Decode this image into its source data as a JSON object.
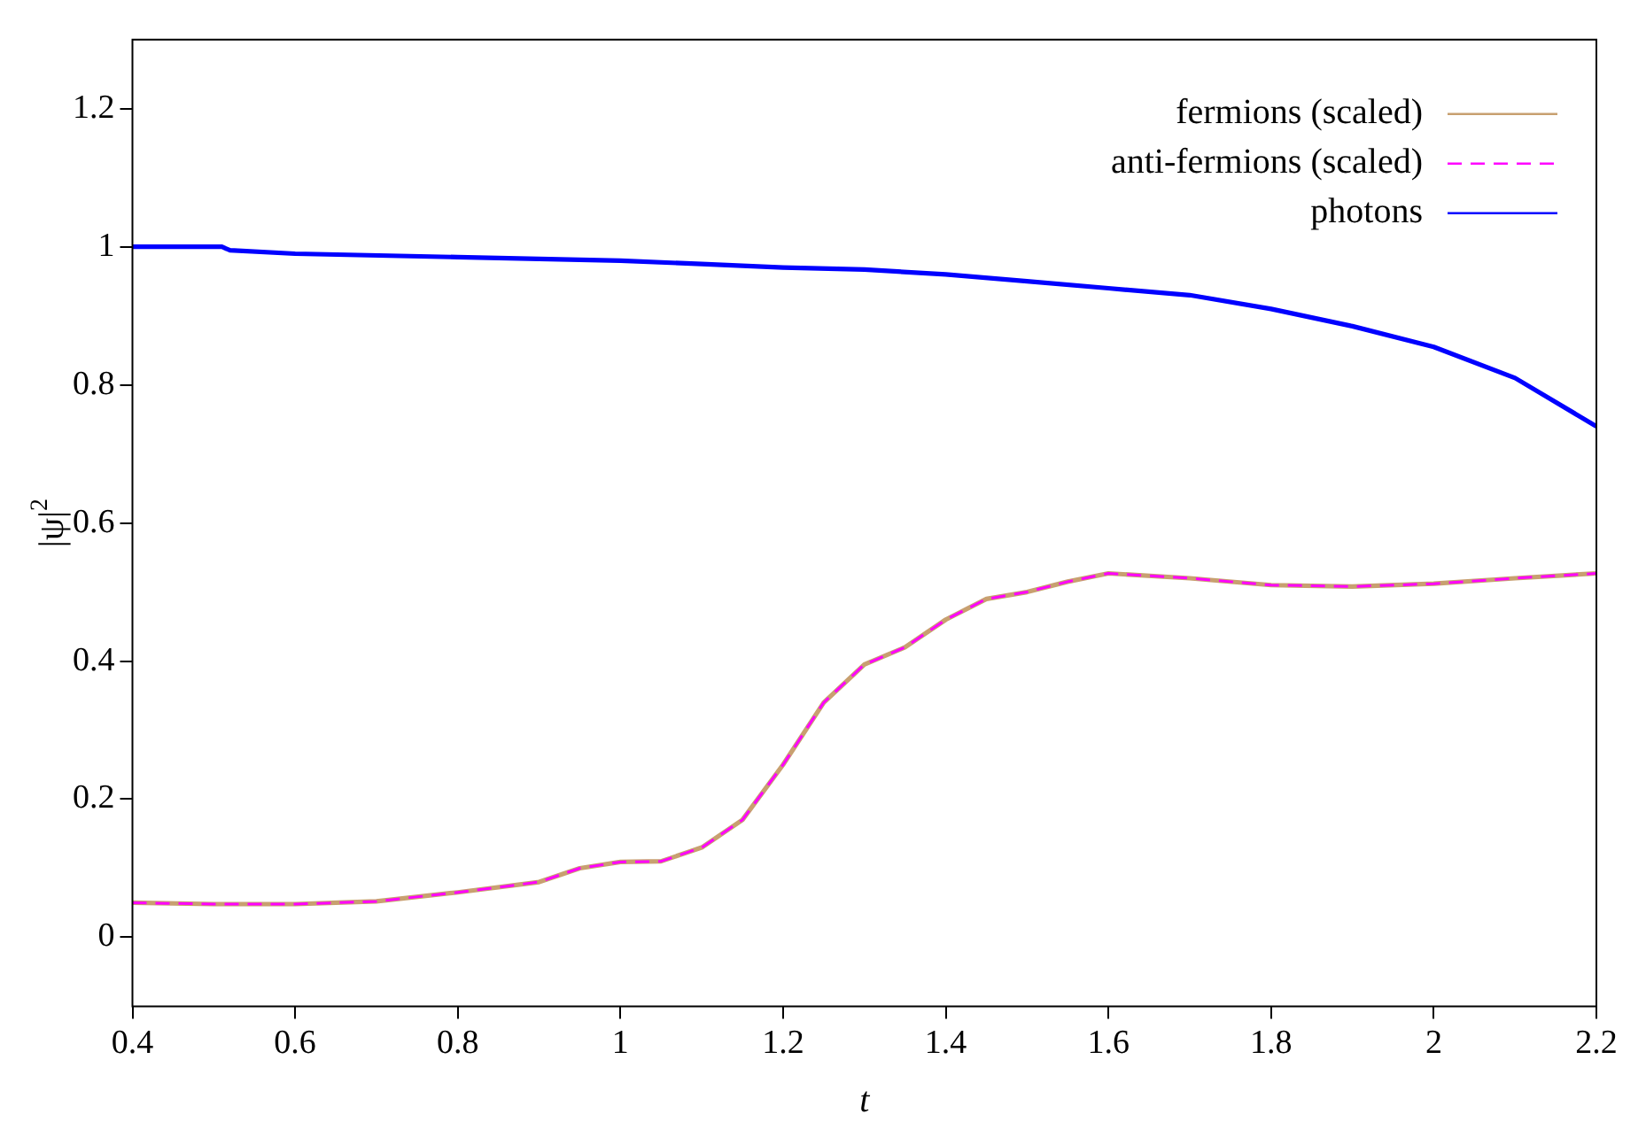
{
  "chart_data": {
    "type": "line",
    "xlabel": "t",
    "ylabel": "|ψ|$^{2}$",
    "xlim": [
      0.4,
      2.2
    ],
    "xticks": [
      0.4,
      0.6,
      0.8,
      1,
      1.2,
      1.4,
      1.6,
      1.8,
      2,
      2.2
    ],
    "ylim": [
      -0.1,
      1.3
    ],
    "yticks": [
      0,
      0.2,
      0.4,
      0.6,
      0.8,
      1,
      1.2
    ],
    "grid": false,
    "legend": "top right",
    "marker": "none",
    "series": [
      {
        "name": "fermions (scaled)",
        "color": "#c8a070",
        "line_style": "solid",
        "x": [
          0.4,
          0.5,
          0.6,
          0.7,
          0.8,
          0.9,
          0.95,
          1,
          1.05,
          1.1,
          1.15,
          1.2,
          1.25,
          1.3,
          1.35,
          1.4,
          1.45,
          1.5,
          1.55,
          1.6,
          1.7,
          1.8,
          1.9,
          2,
          2.1,
          2.2
        ],
        "values": [
          0.05,
          0.048,
          0.048,
          0.052,
          0.065,
          0.08,
          0.1,
          0.109,
          0.11,
          0.13,
          0.17,
          0.25,
          0.34,
          0.395,
          0.42,
          0.46,
          0.49,
          0.5,
          0.515,
          0.527,
          0.52,
          0.51,
          0.508,
          0.512,
          0.52,
          0.527
        ]
      },
      {
        "name": "anti-fermions (scaled)",
        "color": "#ff00ff",
        "line_style": "dashed",
        "x": [
          0.4,
          0.5,
          0.6,
          0.7,
          0.8,
          0.9,
          0.95,
          1,
          1.05,
          1.1,
          1.15,
          1.2,
          1.25,
          1.3,
          1.35,
          1.4,
          1.45,
          1.5,
          1.55,
          1.6,
          1.7,
          1.8,
          1.9,
          2,
          2.1,
          2.2
        ],
        "values": [
          0.05,
          0.048,
          0.048,
          0.052,
          0.065,
          0.08,
          0.1,
          0.109,
          0.11,
          0.13,
          0.17,
          0.25,
          0.34,
          0.395,
          0.42,
          0.46,
          0.49,
          0.5,
          0.515,
          0.527,
          0.52,
          0.51,
          0.508,
          0.512,
          0.52,
          0.527
        ]
      },
      {
        "name": "photons",
        "color": "#0000ff",
        "line_style": "solid",
        "x": [
          0.4,
          0.51,
          0.52,
          0.6,
          0.8,
          1,
          1.1,
          1.2,
          1.3,
          1.4,
          1.5,
          1.6,
          1.7,
          1.8,
          1.9,
          2,
          2.1,
          2.2
        ],
        "values": [
          1,
          1,
          0.995,
          0.99,
          0.985,
          0.98,
          0.975,
          0.97,
          0.967,
          0.96,
          0.95,
          0.94,
          0.93,
          0.91,
          0.885,
          0.855,
          0.81,
          0.74
        ]
      }
    ]
  }
}
